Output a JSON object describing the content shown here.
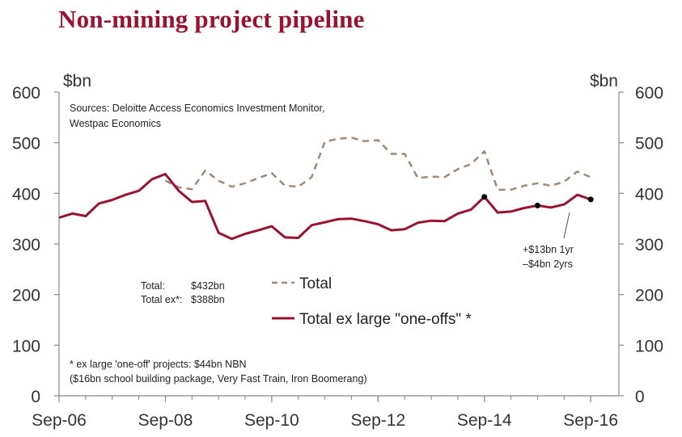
{
  "title": "Non-mining project pipeline",
  "chart_data": {
    "type": "line",
    "title": "Non-mining project pipeline",
    "y_unit_left": "$bn",
    "y_unit_right": "$bn",
    "ylim": [
      0,
      600
    ],
    "yticks": [
      0,
      100,
      200,
      300,
      400,
      500,
      600
    ],
    "xlim": [
      "2006-09",
      "2016-12"
    ],
    "xticks": [
      {
        "label": "Sep-06",
        "t": 2006.67
      },
      {
        "label": "Sep-08",
        "t": 2008.67
      },
      {
        "label": "Sep-10",
        "t": 2010.67
      },
      {
        "label": "Sep-12",
        "t": 2012.67
      },
      {
        "label": "Sep-14",
        "t": 2014.67
      },
      {
        "label": "Sep-16",
        "t": 2016.67
      }
    ],
    "grid": false,
    "series": [
      {
        "name": "Total",
        "style": "dashed",
        "color": "#9e8a78",
        "points": [
          [
            2008.67,
            425
          ],
          [
            2008.92,
            412
          ],
          [
            2009.17,
            408
          ],
          [
            2009.42,
            445
          ],
          [
            2009.67,
            425
          ],
          [
            2009.92,
            413
          ],
          [
            2010.17,
            420
          ],
          [
            2010.42,
            430
          ],
          [
            2010.67,
            440
          ],
          [
            2010.92,
            415
          ],
          [
            2011.17,
            413
          ],
          [
            2011.42,
            432
          ],
          [
            2011.67,
            502
          ],
          [
            2011.92,
            508
          ],
          [
            2012.17,
            510
          ],
          [
            2012.42,
            503
          ],
          [
            2012.67,
            505
          ],
          [
            2012.92,
            478
          ],
          [
            2013.17,
            478
          ],
          [
            2013.42,
            430
          ],
          [
            2013.67,
            433
          ],
          [
            2013.92,
            432
          ],
          [
            2014.17,
            448
          ],
          [
            2014.42,
            458
          ],
          [
            2014.67,
            483
          ],
          [
            2014.92,
            407
          ],
          [
            2015.17,
            407
          ],
          [
            2015.42,
            415
          ],
          [
            2015.67,
            420
          ],
          [
            2015.92,
            415
          ],
          [
            2016.17,
            423
          ],
          [
            2016.42,
            443
          ],
          [
            2016.67,
            432
          ]
        ]
      },
      {
        "name": "Total ex large \"one-offs\" *",
        "style": "solid",
        "color": "#9b1131",
        "points": [
          [
            2006.67,
            352
          ],
          [
            2006.92,
            360
          ],
          [
            2007.17,
            355
          ],
          [
            2007.42,
            380
          ],
          [
            2007.67,
            387
          ],
          [
            2007.92,
            397
          ],
          [
            2008.17,
            405
          ],
          [
            2008.42,
            428
          ],
          [
            2008.67,
            438
          ],
          [
            2008.92,
            405
          ],
          [
            2009.17,
            383
          ],
          [
            2009.42,
            385
          ],
          [
            2009.67,
            322
          ],
          [
            2009.92,
            310
          ],
          [
            2010.17,
            320
          ],
          [
            2010.42,
            327
          ],
          [
            2010.67,
            335
          ],
          [
            2010.92,
            313
          ],
          [
            2011.17,
            312
          ],
          [
            2011.42,
            337
          ],
          [
            2011.67,
            343
          ],
          [
            2011.92,
            349
          ],
          [
            2012.17,
            350
          ],
          [
            2012.42,
            345
          ],
          [
            2012.67,
            339
          ],
          [
            2012.92,
            327
          ],
          [
            2013.17,
            329
          ],
          [
            2013.42,
            342
          ],
          [
            2013.67,
            346
          ],
          [
            2013.92,
            345
          ],
          [
            2014.17,
            360
          ],
          [
            2014.42,
            368
          ],
          [
            2014.67,
            393
          ],
          [
            2014.92,
            362
          ],
          [
            2015.17,
            364
          ],
          [
            2015.42,
            371
          ],
          [
            2015.67,
            376
          ],
          [
            2015.92,
            372
          ],
          [
            2016.17,
            378
          ],
          [
            2016.42,
            397
          ],
          [
            2016.67,
            388
          ]
        ]
      }
    ],
    "markers": [
      [
        2014.67,
        393
      ],
      [
        2015.67,
        376
      ],
      [
        2016.67,
        388
      ]
    ],
    "annotations": {
      "sources": [
        "Sources: Deloitte Access Economics Investment Monitor,",
        "Westpac Economics"
      ],
      "totals": [
        {
          "label": "Total:",
          "value": "$432bn"
        },
        {
          "label": "Total ex*:",
          "value": "$388bn"
        }
      ],
      "change": [
        "+$13bn 1yr",
        "–$4bn 2yrs"
      ],
      "footnote": [
        "* ex large 'one-off' projects:  $44bn NBN",
        "($16bn school building package, Very Fast Train, Iron Boomerang)"
      ]
    },
    "legend": [
      {
        "label": "Total",
        "style": "dashed"
      },
      {
        "label": "Total ex large \"one-offs\" *",
        "style": "solid"
      }
    ]
  }
}
